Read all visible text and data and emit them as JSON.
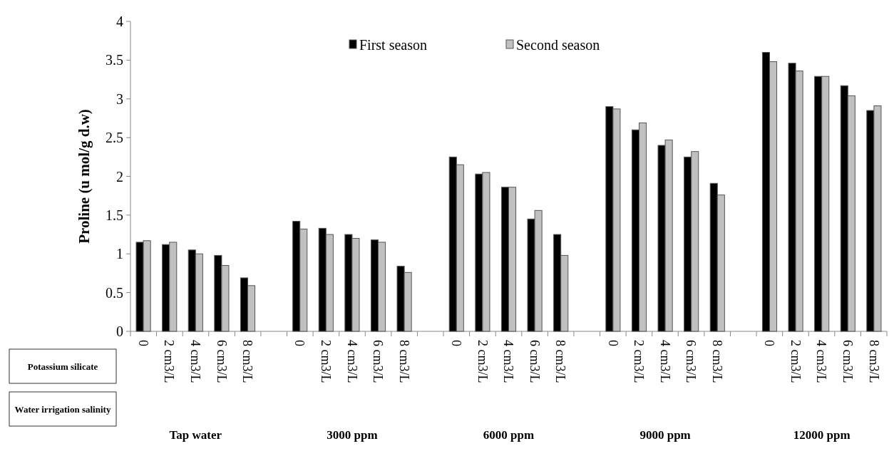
{
  "chart_data": {
    "type": "bar",
    "ylabel": "Proline (u mol/g d.w)",
    "categories": [
      "0",
      "2 cm3/L",
      "4 cm3/L",
      "6 cm3/L",
      "8 cm3/L",
      null,
      "0",
      "2 cm3/L",
      "4 cm3/L",
      "6 cm3/L",
      "8 cm3/L",
      null,
      "0",
      "2 cm3/L",
      "4 cm3/L",
      "6 cm3/L",
      "8 cm3/L",
      null,
      "0",
      "2 cm3/L",
      "4 cm3/L",
      "6 cm3/L",
      "8 cm3/L",
      null,
      "0",
      "2 cm3/L",
      "4 cm3/L",
      "6 cm3/L",
      "8 cm3/L"
    ],
    "series": [
      {
        "name": "First season",
        "color": "#000000",
        "values": [
          1.15,
          1.12,
          1.05,
          0.98,
          0.69,
          null,
          1.42,
          1.33,
          1.25,
          1.18,
          0.84,
          null,
          2.25,
          2.03,
          1.86,
          1.45,
          1.25,
          null,
          2.9,
          2.6,
          2.4,
          2.25,
          1.91,
          null,
          3.6,
          3.46,
          3.29,
          3.17,
          2.85
        ]
      },
      {
        "name": "Second season",
        "color": "#c0c0c0",
        "values": [
          1.17,
          1.15,
          1.0,
          0.85,
          0.59,
          null,
          1.32,
          1.25,
          1.2,
          1.15,
          0.76,
          null,
          2.15,
          2.05,
          1.86,
          1.56,
          0.98,
          null,
          2.87,
          2.69,
          2.47,
          2.32,
          1.76,
          null,
          3.48,
          3.36,
          3.29,
          3.04,
          2.91
        ]
      }
    ],
    "ylim": [
      0,
      4
    ],
    "yticks": [
      0,
      0.5,
      1,
      1.5,
      2,
      2.5,
      3,
      3.5,
      4
    ],
    "legend": "top",
    "annotations": [
      "Potassium silicate",
      "Water irrigation salinity",
      "Tap water",
      "3000 ppm",
      "6000 ppm",
      "9000 ppm",
      "12000 ppm"
    ]
  }
}
